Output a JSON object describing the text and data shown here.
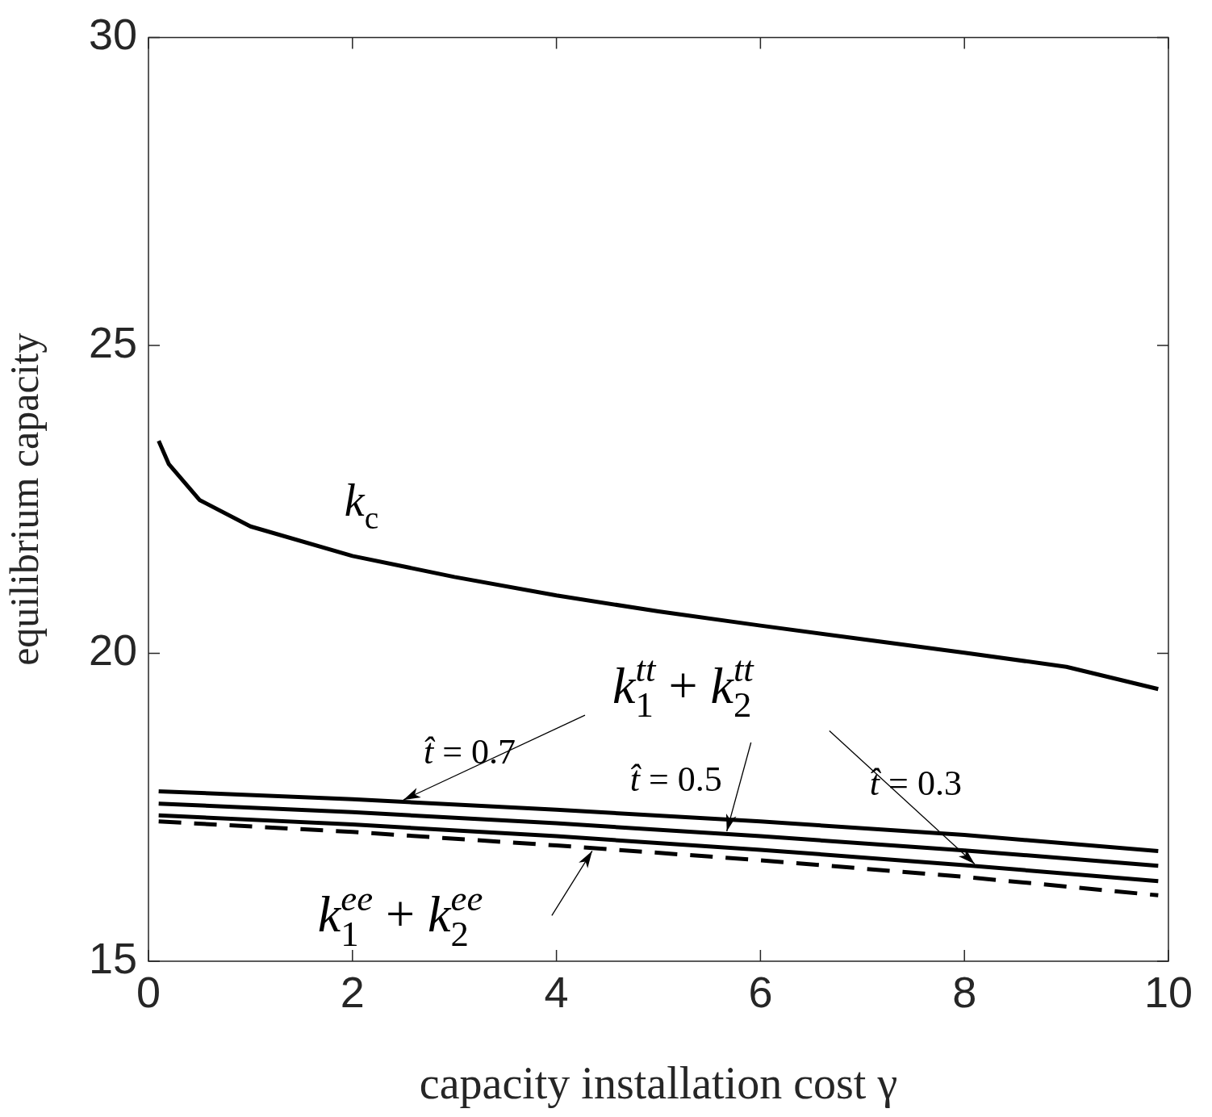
{
  "chart_data": {
    "type": "line",
    "xlabel": "capacity installation cost γ",
    "ylabel": "equilibrium capacity",
    "xlim": [
      0,
      10
    ],
    "xticks": [
      0,
      2,
      4,
      6,
      8,
      10
    ],
    "ylim": [
      15,
      30
    ],
    "yticks": [
      15,
      20,
      25,
      30
    ],
    "grid": false,
    "legend": false,
    "marker": "none",
    "series": [
      {
        "color": "#000000",
        "line_style": "solid",
        "x": [
          0.1,
          0.2,
          0.5,
          1,
          2,
          3,
          4,
          5,
          6,
          7,
          8,
          9,
          9.9
        ],
        "values": [
          23.45,
          23.07,
          22.49,
          22.06,
          21.58,
          21.24,
          20.94,
          20.68,
          20.45,
          20.23,
          20.01,
          19.78,
          19.42
        ]
      },
      {
        "color": "#000000",
        "line_style": "solid",
        "x": [
          0.1,
          2,
          4,
          6,
          8,
          9.9
        ],
        "values": [
          17.76,
          17.63,
          17.46,
          17.27,
          17.05,
          16.79
        ]
      },
      {
        "color": "#000000",
        "line_style": "solid",
        "x": [
          0.1,
          2,
          4,
          6,
          8,
          9.9
        ],
        "values": [
          17.56,
          17.42,
          17.24,
          17.03,
          16.8,
          16.55
        ]
      },
      {
        "color": "#000000",
        "line_style": "solid",
        "x": [
          0.1,
          2,
          4,
          6,
          8,
          9.9
        ],
        "values": [
          17.37,
          17.22,
          17.03,
          16.81,
          16.56,
          16.3
        ]
      },
      {
        "color": "#000000",
        "line_style": "dashed",
        "x": [
          0.1,
          2,
          4,
          6,
          8,
          9.9
        ],
        "values": [
          17.27,
          17.1,
          16.88,
          16.64,
          16.37,
          16.07
        ]
      }
    ],
    "annotations": [
      {
        "text": "k$_{c}$",
        "x": 2,
        "y": 21.58
      },
      "k$_{1}$$^{tt}$ + k$_{2}$$^{tt}$",
      {
        "text": "t̂ = 0.7",
        "x": 2.5,
        "y": 17.62
      },
      {
        "text": "t̂ = 0.5",
        "x": 5.67,
        "y": 17.11
      },
      {
        "text": "t̂ = 0.3",
        "x": 8.1,
        "y": 16.58
      },
      {
        "text": "k$_{1}$$^{ee}$ + k$_{2}$$^{ee}$",
        "x": 4.35,
        "y": 16.79
      }
    ]
  }
}
